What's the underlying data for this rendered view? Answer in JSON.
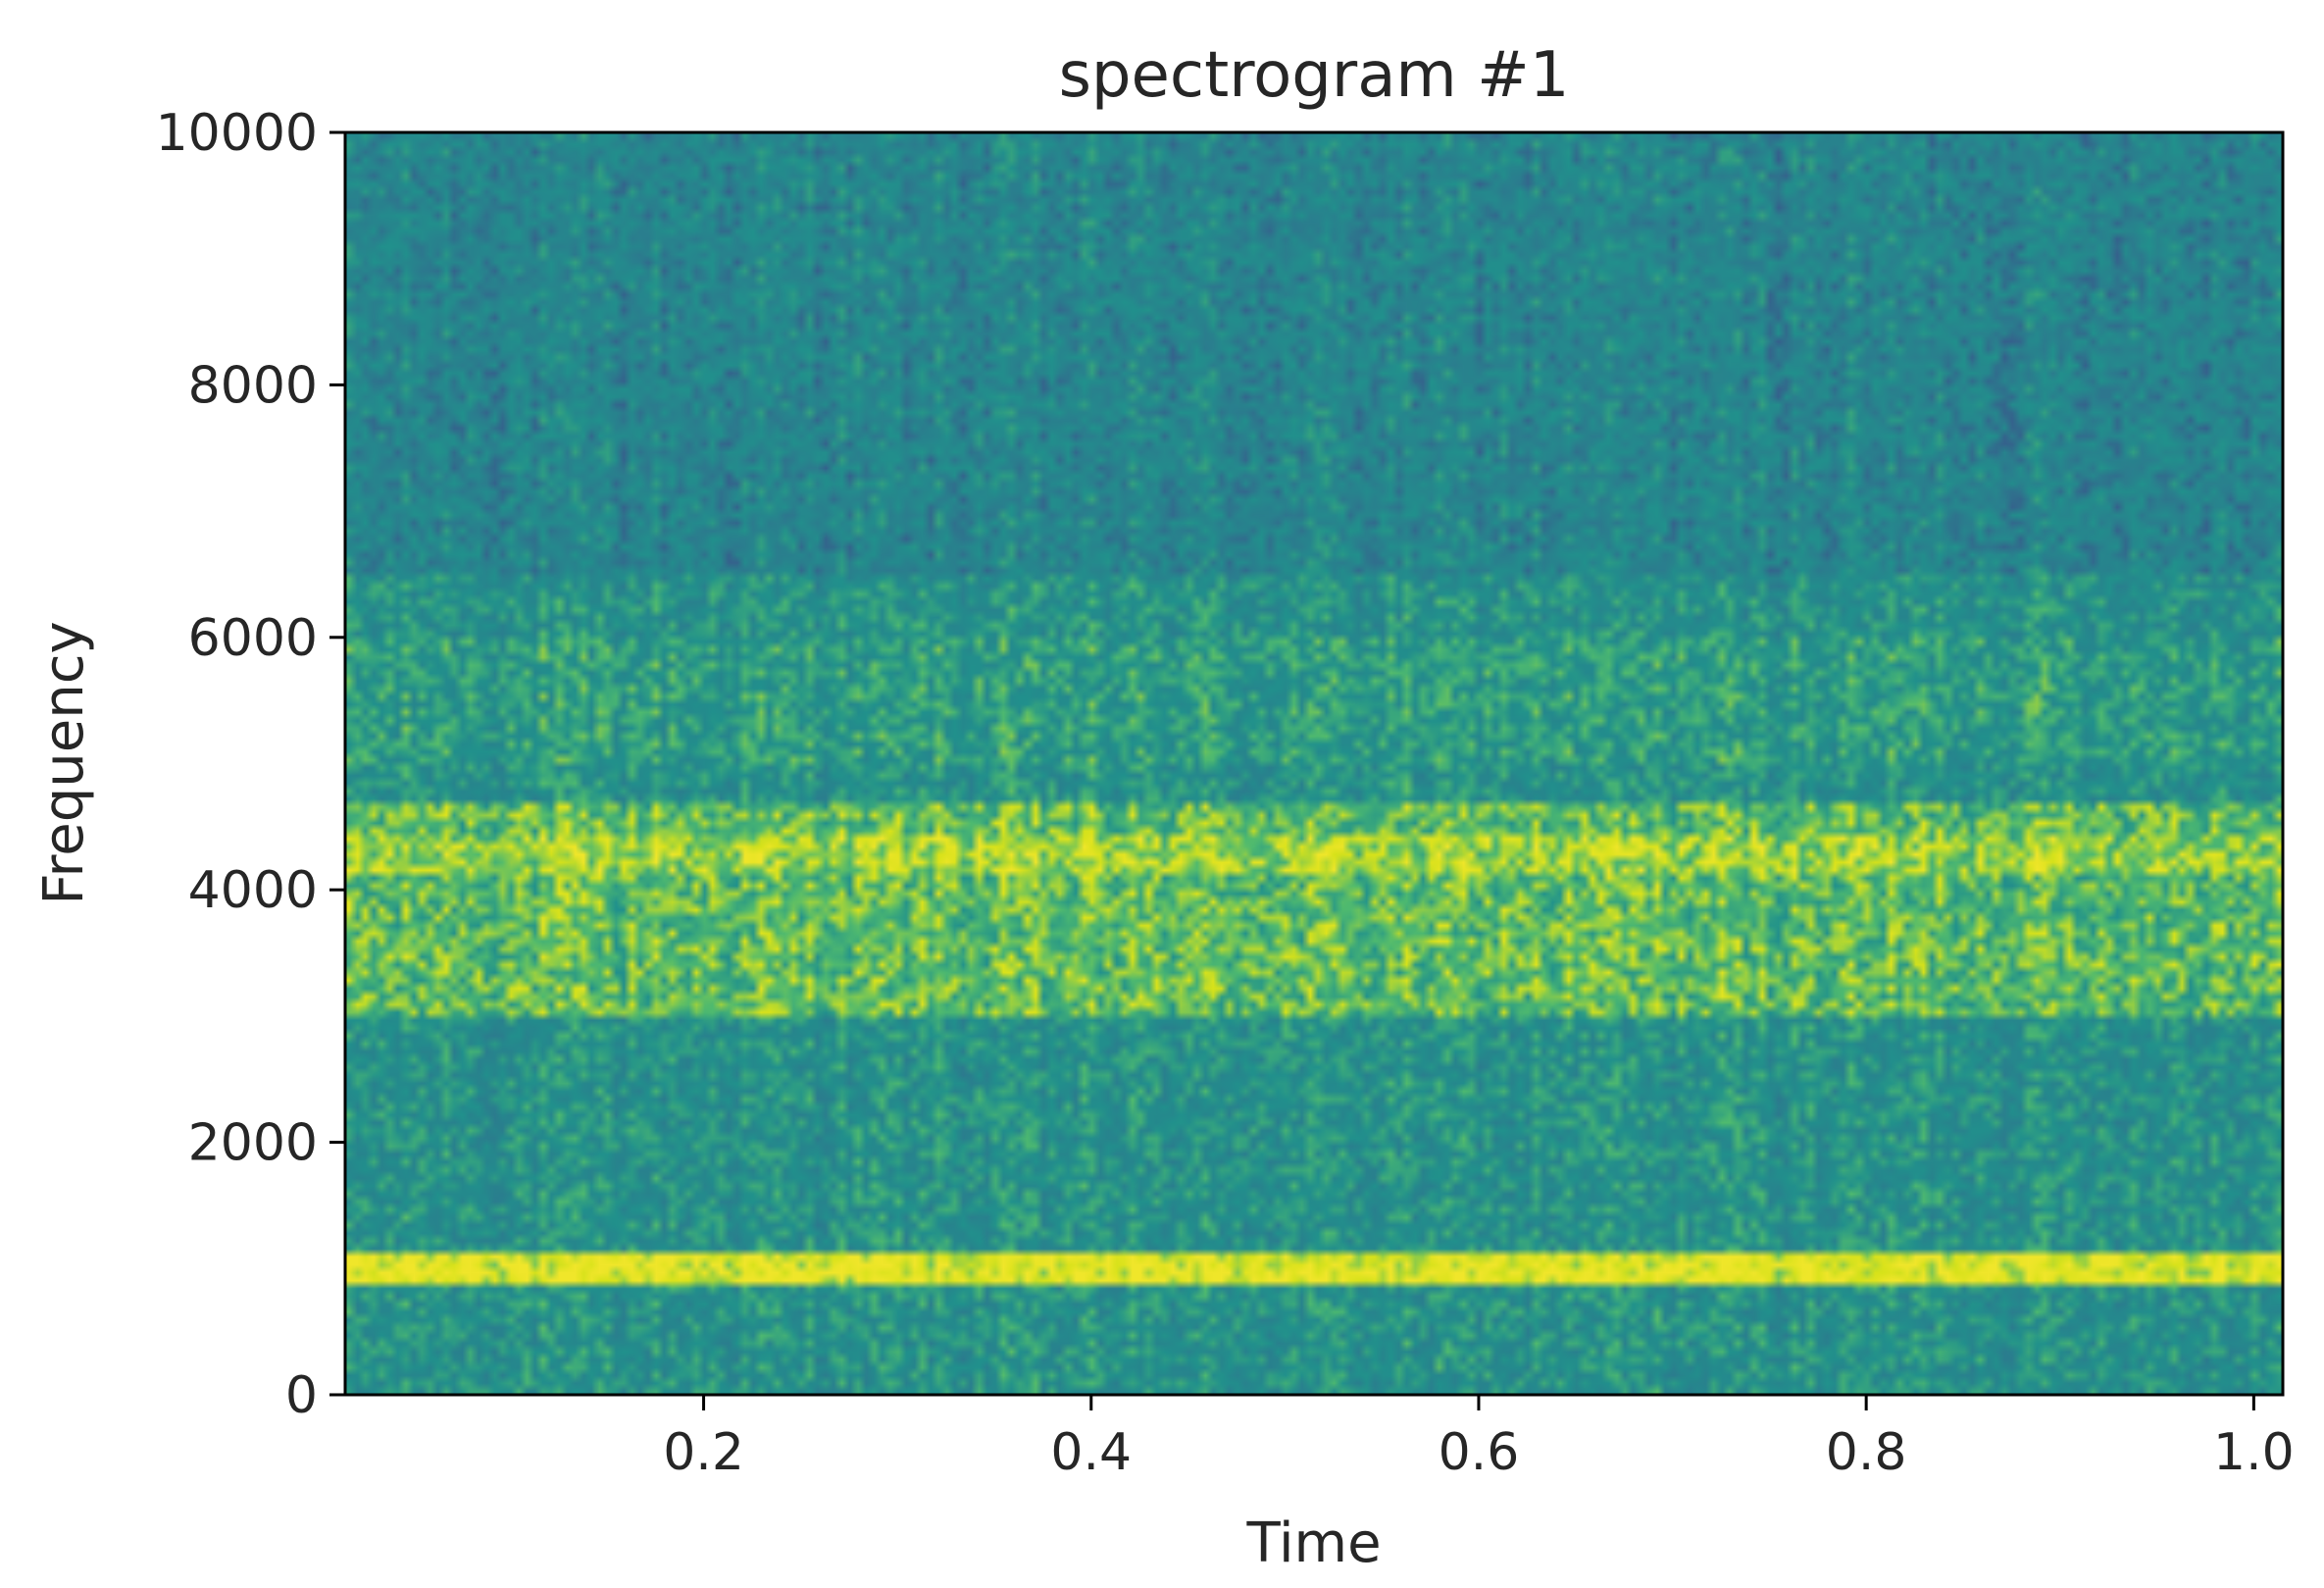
{
  "chart_data": {
    "type": "heatmap",
    "title": "spectrogram #1",
    "xlabel": "Time",
    "ylabel": "Frequency",
    "xlim": [
      0.015,
      1.015
    ],
    "ylim": [
      0,
      10000
    ],
    "x_ticks": [
      0.2,
      0.4,
      0.6,
      0.8,
      1.0
    ],
    "x_tick_labels": [
      "0.2",
      "0.4",
      "0.6",
      "0.8",
      "1.0"
    ],
    "y_ticks": [
      0,
      2000,
      4000,
      6000,
      8000,
      10000
    ],
    "y_tick_labels": [
      "0",
      "2000",
      "4000",
      "6000",
      "8000",
      "10000"
    ],
    "colormap": "viridis",
    "grid": false,
    "features": [
      {
        "type": "tone",
        "frequency": 1000,
        "intensity": "high"
      },
      {
        "type": "band",
        "frequency_range": [
          3000,
          4700
        ],
        "peak": 4300,
        "intensity": "medium-high"
      },
      {
        "type": "band",
        "frequency_range": [
          5000,
          6000
        ],
        "intensity": "medium"
      },
      {
        "type": "background",
        "frequency_range": [
          6500,
          10000
        ],
        "intensity": "low"
      }
    ],
    "colors": {
      "low": "#2b7d8e",
      "mid": "#4fba6f",
      "high": "#d7e21a",
      "peak": "#f0e62a"
    }
  }
}
